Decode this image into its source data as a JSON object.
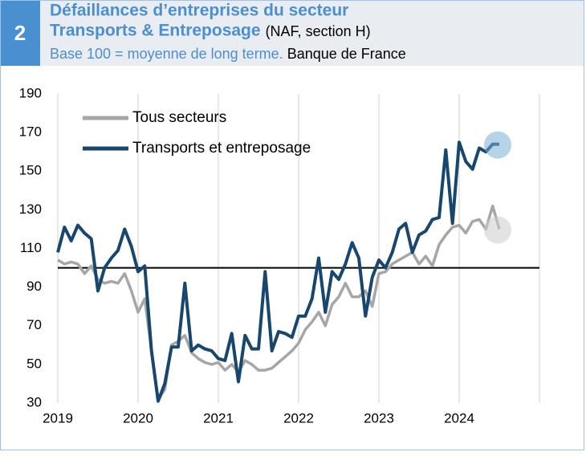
{
  "chart_data": {
    "type": "line",
    "figure_number": "2",
    "title": [
      "Défaillances d’entreprises du secteur",
      "Transports & Entreposage"
    ],
    "title_note": "(NAF, section H)",
    "subtitle": "Base 100 = moyenne de long terme.",
    "source": "Banque de France",
    "categories": [
      "2019",
      null,
      null,
      null,
      null,
      null,
      null,
      null,
      null,
      null,
      null,
      null,
      "2020",
      null,
      null,
      null,
      null,
      null,
      null,
      null,
      null,
      null,
      null,
      null,
      "2021",
      null,
      null,
      null,
      null,
      null,
      null,
      null,
      null,
      null,
      null,
      null,
      "2022",
      null,
      null,
      null,
      null,
      null,
      null,
      null,
      null,
      null,
      null,
      null,
      "2023",
      null,
      null,
      null,
      null,
      null,
      null,
      null,
      null,
      null,
      null,
      null,
      "2024",
      null,
      null,
      null,
      null,
      null,
      null
    ],
    "series": [
      {
        "name": "Tous secteurs",
        "color": "#a6a6a6",
        "values": [
          104,
          102,
          103,
          102,
          97,
          101,
          94,
          92,
          93,
          92,
          97,
          88,
          77,
          84,
          57,
          32,
          37,
          60,
          62,
          65,
          56,
          53,
          51,
          50,
          51,
          47,
          50,
          46,
          52,
          50,
          47,
          47,
          48,
          51,
          54,
          57,
          61,
          68,
          72,
          77,
          70,
          81,
          85,
          92,
          85,
          85,
          88,
          80,
          97,
          98,
          102,
          104,
          106,
          108,
          102,
          106,
          101,
          112,
          117,
          121,
          122,
          118,
          124,
          125,
          120,
          132,
          120
        ]
      },
      {
        "name": "Transports et entreposage",
        "color": "#17466e",
        "values": [
          108,
          121,
          114,
          122,
          118,
          115,
          88,
          100,
          105,
          109,
          120,
          111,
          98,
          101,
          57,
          31,
          40,
          59,
          59,
          92,
          57,
          60,
          58,
          57,
          53,
          52,
          66,
          41,
          65,
          58,
          58,
          98,
          57,
          67,
          66,
          64,
          75,
          75,
          84,
          105,
          77,
          98,
          94,
          102,
          113,
          105,
          75,
          95,
          104,
          100,
          108,
          120,
          123,
          108,
          117,
          119,
          125,
          126,
          161,
          123,
          165,
          155,
          151,
          162,
          160,
          164,
          164
        ]
      }
    ],
    "reference_line": 100,
    "ylim": [
      30,
      190
    ],
    "yticks": [
      30,
      50,
      70,
      90,
      110,
      130,
      150,
      170,
      190
    ],
    "grid": "x",
    "legend": "top-left"
  }
}
